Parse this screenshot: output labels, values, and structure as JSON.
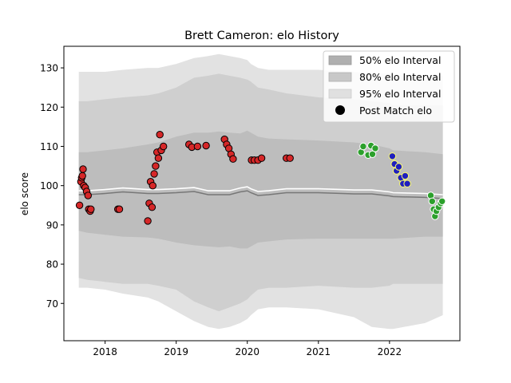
{
  "chart_data": {
    "type": "scatter",
    "title": "Brett Cameron: elo History",
    "xlabel": "",
    "ylabel": "elo score",
    "xlim": [
      2017.42,
      2022.99
    ],
    "ylim": [
      60.5,
      135.5
    ],
    "x_ticks": [
      2018,
      2019,
      2020,
      2021,
      2022
    ],
    "x_tick_labels": [
      "2018",
      "2019",
      "2020",
      "2021",
      "2022"
    ],
    "y_ticks": [
      70,
      80,
      90,
      100,
      110,
      120,
      130
    ],
    "y_tick_labels": [
      "70",
      "80",
      "90",
      "100",
      "110",
      "120",
      "130"
    ],
    "legend": {
      "placement": "top-right",
      "entries": [
        {
          "label": "50% elo Interval",
          "color": "#b0b0b0"
        },
        {
          "label": "80% elo Interval",
          "color": "#c8c8c8"
        },
        {
          "label": "95% elo Interval",
          "color": "#e0e0e0"
        },
        {
          "label": "Post Match elo",
          "color": "#000000"
        }
      ]
    },
    "bands": {
      "x": [
        2017.63,
        2017.75,
        2018.0,
        2018.25,
        2018.6,
        2018.75,
        2019.0,
        2019.25,
        2019.45,
        2019.6,
        2019.75,
        2019.9,
        2020.0,
        2020.05,
        2020.15,
        2020.3,
        2020.55,
        2021.0,
        2021.5,
        2021.75,
        2022.0,
        2022.05,
        2022.5,
        2022.75
      ],
      "center": [
        98.5,
        98.5,
        98.8,
        99.2,
        98.8,
        98.8,
        99.0,
        99.3,
        98.5,
        98.5,
        98.5,
        99.2,
        99.5,
        99.0,
        98.3,
        98.5,
        99.0,
        99.0,
        98.7,
        98.7,
        98.2,
        98.0,
        97.8,
        97.5
      ],
      "p50_lower": [
        88.5,
        88.0,
        87.5,
        87.0,
        86.8,
        86.5,
        85.5,
        84.8,
        84.5,
        84.3,
        84.5,
        84.0,
        84.0,
        84.5,
        85.5,
        85.8,
        86.3,
        86.5,
        86.5,
        86.5,
        86.5,
        86.5,
        87.0,
        87.0
      ],
      "p50_upper": [
        108.5,
        108.5,
        109.0,
        109.5,
        110.5,
        111.0,
        112.5,
        113.5,
        113.5,
        113.8,
        113.5,
        113.3,
        114.0,
        113.5,
        112.5,
        112.0,
        111.8,
        111.5,
        111.0,
        110.5,
        109.5,
        109.0,
        108.5,
        108.0
      ],
      "p80_lower": [
        76.5,
        76.0,
        75.5,
        75.0,
        75.0,
        74.5,
        73.5,
        70.5,
        69.0,
        68.0,
        69.0,
        70.0,
        71.0,
        72.0,
        73.5,
        74.0,
        74.0,
        74.5,
        74.0,
        74.0,
        74.5,
        75.0,
        75.0,
        75.0
      ],
      "p80_upper": [
        121.5,
        121.5,
        122.0,
        122.5,
        123.0,
        123.5,
        125.0,
        127.5,
        128.0,
        128.5,
        128.0,
        127.5,
        127.0,
        126.5,
        125.0,
        124.5,
        123.5,
        122.5,
        122.0,
        121.5,
        121.0,
        120.5,
        120.5,
        120.5
      ],
      "p95_lower": [
        74.0,
        74.0,
        73.5,
        72.5,
        71.5,
        70.5,
        68.0,
        65.5,
        64.0,
        63.5,
        64.0,
        65.0,
        66.0,
        67.0,
        68.5,
        69.0,
        69.0,
        68.5,
        66.5,
        64.0,
        63.5,
        63.5,
        65.0,
        67.0
      ],
      "p95_upper": [
        129.0,
        129.0,
        129.0,
        129.5,
        130.0,
        130.0,
        131.0,
        132.5,
        133.0,
        133.5,
        133.0,
        132.5,
        132.0,
        131.0,
        130.0,
        129.5,
        129.5,
        129.5,
        129.0,
        128.5,
        128.5,
        128.0,
        128.0,
        128.0
      ]
    },
    "series": [
      {
        "color": "#d62728",
        "edge": "#000000",
        "points": [
          [
            2017.64,
            95.0
          ],
          [
            2017.66,
            101.0
          ],
          [
            2017.67,
            102.0
          ],
          [
            2017.68,
            102.5
          ],
          [
            2017.69,
            104.2
          ],
          [
            2017.7,
            100.0
          ],
          [
            2017.72,
            99.5
          ],
          [
            2017.74,
            98.5
          ],
          [
            2017.76,
            97.5
          ],
          [
            2017.77,
            94.0
          ],
          [
            2017.79,
            93.5
          ],
          [
            2017.8,
            94.0
          ],
          [
            2018.18,
            94.0
          ],
          [
            2018.2,
            94.0
          ],
          [
            2018.6,
            91.0
          ],
          [
            2018.62,
            95.5
          ],
          [
            2018.64,
            101.0
          ],
          [
            2018.66,
            94.5
          ],
          [
            2018.67,
            100.0
          ],
          [
            2018.69,
            103.0
          ],
          [
            2018.71,
            105.0
          ],
          [
            2018.73,
            108.5
          ],
          [
            2018.75,
            107.0
          ],
          [
            2018.77,
            113.0
          ],
          [
            2018.79,
            109.0
          ],
          [
            2018.82,
            110.0
          ],
          [
            2019.18,
            110.5
          ],
          [
            2019.22,
            109.8
          ],
          [
            2019.3,
            110.0
          ],
          [
            2019.42,
            110.2
          ],
          [
            2019.68,
            111.8
          ],
          [
            2019.71,
            110.5
          ],
          [
            2019.74,
            109.5
          ],
          [
            2019.77,
            108.0
          ],
          [
            2019.8,
            106.8
          ],
          [
            2020.06,
            106.5
          ],
          [
            2020.1,
            106.5
          ],
          [
            2020.15,
            106.5
          ],
          [
            2020.2,
            107.0
          ],
          [
            2020.55,
            107.0
          ],
          [
            2020.6,
            107.0
          ]
        ]
      },
      {
        "color": "#2ca02c",
        "edge": "#ffffff",
        "points": [
          [
            2021.6,
            108.5
          ],
          [
            2021.63,
            110.0
          ],
          [
            2021.7,
            107.8
          ],
          [
            2021.74,
            110.2
          ],
          [
            2021.76,
            108.0
          ],
          [
            2021.8,
            109.5
          ],
          [
            2022.58,
            97.5
          ],
          [
            2022.6,
            96.0
          ],
          [
            2022.62,
            94.0
          ],
          [
            2022.64,
            92.2
          ],
          [
            2022.66,
            93.5
          ],
          [
            2022.69,
            94.5
          ],
          [
            2022.72,
            95.5
          ],
          [
            2022.74,
            96.0
          ]
        ]
      },
      {
        "color": "#1f1fbf",
        "edge": "#ffff66",
        "points": [
          [
            2022.04,
            107.5
          ],
          [
            2022.07,
            105.5
          ],
          [
            2022.1,
            103.8
          ],
          [
            2022.13,
            104.8
          ],
          [
            2022.16,
            102.0
          ],
          [
            2022.19,
            100.5
          ],
          [
            2022.22,
            102.5
          ],
          [
            2022.25,
            100.5
          ]
        ]
      }
    ]
  }
}
